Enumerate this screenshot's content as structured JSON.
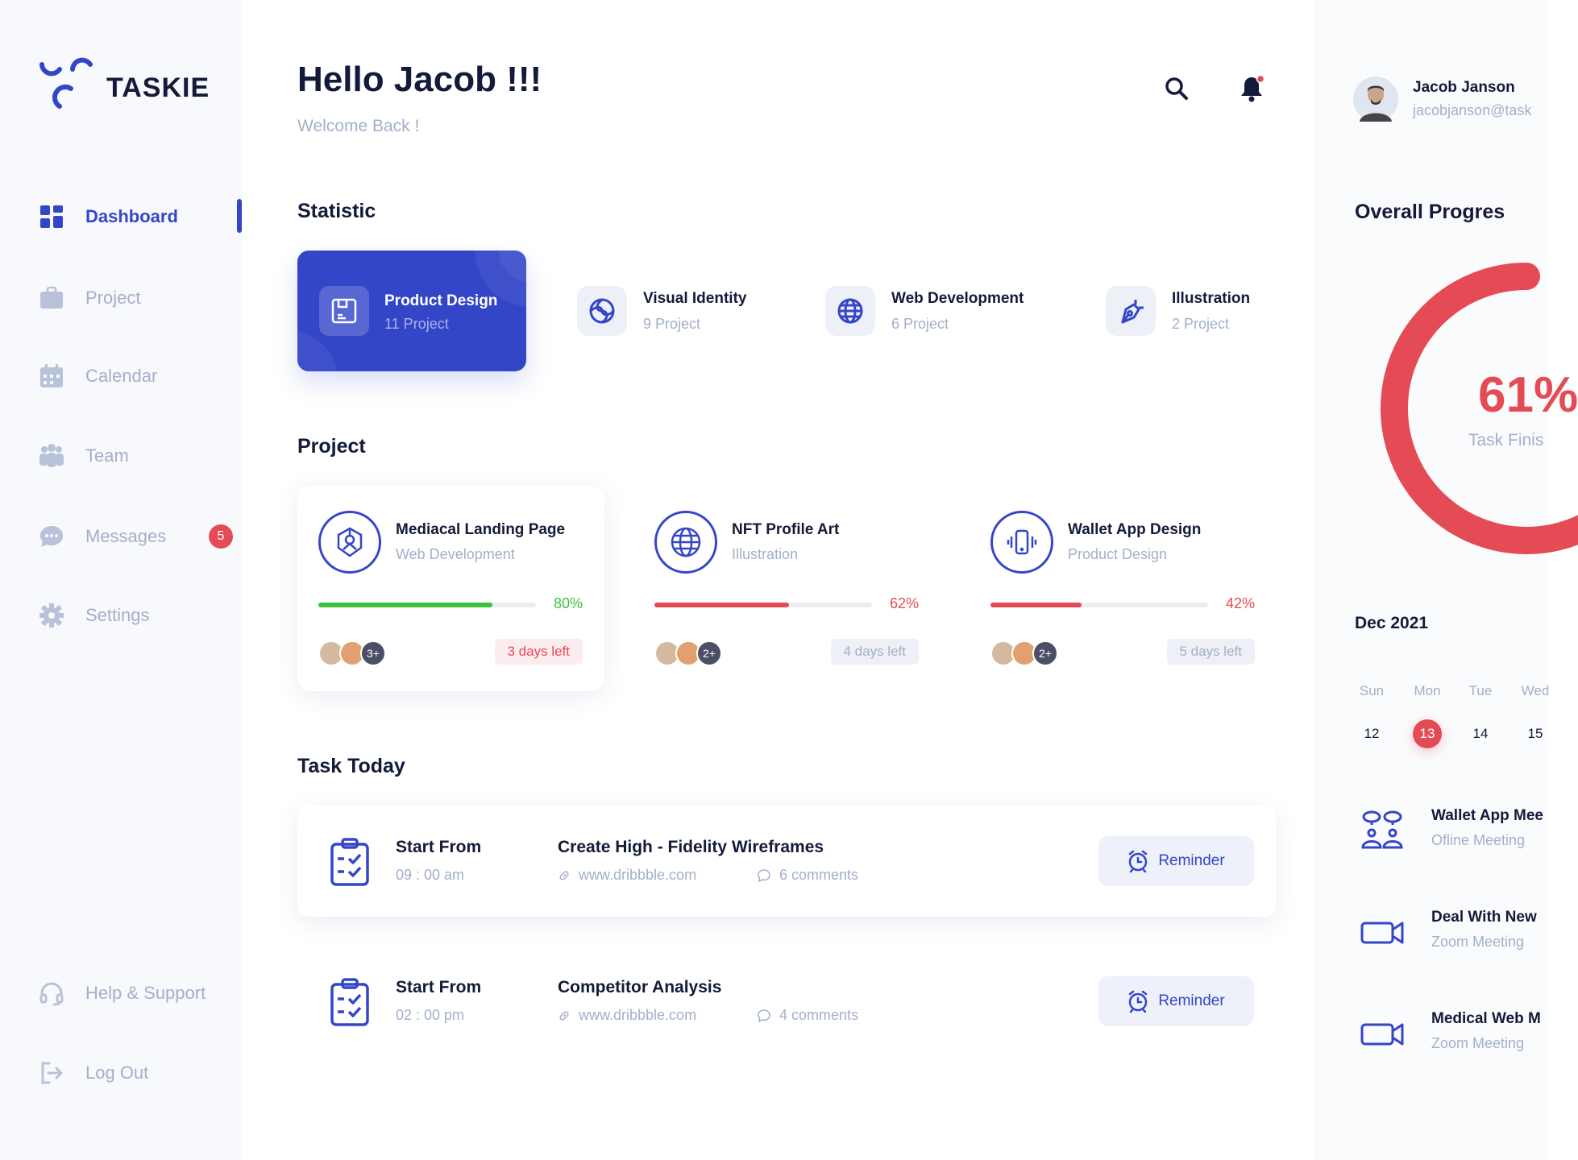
{
  "brand": {
    "name": "TASKIE",
    "color": "#3446c8"
  },
  "sidebar": {
    "items": [
      {
        "label": "Dashboard",
        "icon": "grid-icon",
        "active": true
      },
      {
        "label": "Project",
        "icon": "briefcase-icon"
      },
      {
        "label": "Calendar",
        "icon": "calendar-icon"
      },
      {
        "label": "Team",
        "icon": "team-icon"
      },
      {
        "label": "Messages",
        "icon": "chat-icon",
        "badge": "5"
      },
      {
        "label": "Settings",
        "icon": "gear-icon"
      }
    ],
    "bottom": [
      {
        "label": "Help & Support",
        "icon": "headset-icon"
      },
      {
        "label": "Log Out",
        "icon": "logout-icon"
      }
    ]
  },
  "header": {
    "title": "Hello Jacob !!!",
    "subtitle": "Welcome Back !"
  },
  "user": {
    "name": "Jacob Janson",
    "email": "jacobjanson@task"
  },
  "statistic": {
    "title": "Statistic",
    "items": [
      {
        "title": "Product Design",
        "count": "11 Project",
        "icon": "floppy-icon",
        "active": true
      },
      {
        "title": "Visual Identity",
        "count": "9 Project",
        "icon": "swirl-icon"
      },
      {
        "title": "Web Development",
        "count": "6 Project",
        "icon": "globe-icon"
      },
      {
        "title": "Illustration",
        "count": "2 Project",
        "icon": "pen-tool-icon"
      }
    ]
  },
  "projects": {
    "title": "Project",
    "items": [
      {
        "title": "Mediacal Landing Page",
        "category": "Web Development",
        "progress": 80,
        "progress_label": "80%",
        "color": "#3cc13b",
        "extra": "3+",
        "days": "3 days left",
        "urgent": true
      },
      {
        "title": "NFT Profile Art",
        "category": "Illustration",
        "progress": 62,
        "progress_label": "62%",
        "color": "#e44b55",
        "extra": "2+",
        "days": "4 days left"
      },
      {
        "title": "Wallet App Design",
        "category": "Product Design",
        "progress": 42,
        "progress_label": "42%",
        "color": "#e44b55",
        "extra": "2+",
        "days": "5 days left"
      }
    ]
  },
  "tasks": {
    "title": "Task Today",
    "items": [
      {
        "label": "Start From",
        "time": "09 : 00 am",
        "title": "Create High - Fidelity Wireframes",
        "link": "www.dribbble.com",
        "comments": "6 comments",
        "button": "Reminder"
      },
      {
        "label": "Start From",
        "time": "02 : 00 pm",
        "title": "Competitor Analysis",
        "link": "www.dribbble.com",
        "comments": "4 comments",
        "button": "Reminder"
      }
    ]
  },
  "overall": {
    "title": "Overall Progres",
    "value": 61,
    "value_label": "61%",
    "caption": "Task Finis",
    "color": "#e44b55"
  },
  "calendar": {
    "month": "Dec 2021",
    "weekdays": [
      "Sun",
      "Mon",
      "Tue",
      "Wed"
    ],
    "dates": [
      "12",
      "13",
      "14",
      "15"
    ],
    "selected": "13"
  },
  "meetings": [
    {
      "title": "Wallet App Mee",
      "type": "Ofline Meeting",
      "icon": "people-chat-icon"
    },
    {
      "title": "Deal With New",
      "type": "Zoom Meeting",
      "icon": "video-camera-icon"
    },
    {
      "title": "Medical Web M",
      "type": "Zoom Meeting",
      "icon": "video-camera-icon"
    }
  ]
}
